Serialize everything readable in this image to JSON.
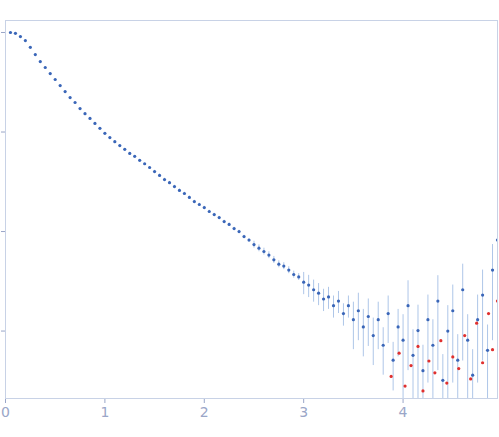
{
  "chart_data": {
    "type": "scatter",
    "log": "y",
    "tick_labels": "x",
    "xlim": [
      0,
      4.95
    ],
    "xticks": [
      0,
      1,
      2,
      3,
      4
    ],
    "ylim": [
      0.00021,
      1.32
    ],
    "yticks": [
      0.001,
      0.01,
      0.1,
      1
    ],
    "series": [
      {
        "color": "#3a66b8",
        "marker": "circle",
        "x": [
          0.05,
          0.1,
          0.15,
          0.2,
          0.25,
          0.3,
          0.35,
          0.4,
          0.45,
          0.5,
          0.55,
          0.6,
          0.65,
          0.7,
          0.75,
          0.8,
          0.85,
          0.9,
          0.95,
          1.0,
          1.05,
          1.1,
          1.15,
          1.2,
          1.25,
          1.3,
          1.35,
          1.4,
          1.45,
          1.5,
          1.55,
          1.6,
          1.65,
          1.7,
          1.75,
          1.8,
          1.85,
          1.9,
          1.95,
          2.0,
          2.05,
          2.1,
          2.15,
          2.2,
          2.25,
          2.3,
          2.35,
          2.4,
          2.45,
          2.5,
          2.55,
          2.6,
          2.65,
          2.7,
          2.75,
          2.8,
          2.85,
          2.9,
          2.95,
          3.0,
          3.05,
          3.1,
          3.15,
          3.2,
          3.25,
          3.3,
          3.35,
          3.4,
          3.45,
          3.5,
          3.55,
          3.6,
          3.65,
          3.7,
          3.75,
          3.8,
          3.85,
          3.9,
          3.95,
          4.0,
          4.05,
          4.1,
          4.15,
          4.2,
          4.25,
          4.3,
          4.35,
          4.4,
          4.45,
          4.5,
          4.55,
          4.6,
          4.65,
          4.7,
          4.75,
          4.8,
          4.85,
          4.9,
          4.95
        ],
        "values": [
          1.0,
          0.98,
          0.91,
          0.83,
          0.71,
          0.6,
          0.51,
          0.445,
          0.387,
          0.337,
          0.293,
          0.255,
          0.222,
          0.198,
          0.172,
          0.153,
          0.137,
          0.122,
          0.109,
          0.097,
          0.088,
          0.08,
          0.073,
          0.067,
          0.061,
          0.057,
          0.052,
          0.048,
          0.044,
          0.04,
          0.0366,
          0.0333,
          0.031,
          0.0283,
          0.0259,
          0.0241,
          0.022,
          0.02,
          0.0187,
          0.0174,
          0.0159,
          0.0148,
          0.0138,
          0.0126,
          0.0118,
          0.0107,
          0.01,
          0.0089,
          0.0082,
          0.0074,
          0.0068,
          0.0063,
          0.0058,
          0.0052,
          0.0047,
          0.0045,
          0.0041,
          0.0037,
          0.0035,
          0.0031,
          0.0029,
          0.0026,
          0.0024,
          0.0021,
          0.0022,
          0.0018,
          0.002,
          0.0015,
          0.0018,
          0.0013,
          0.0016,
          0.0011,
          0.0014,
          0.0009,
          0.0013,
          0.00072,
          0.0015,
          0.00051,
          0.0011,
          0.00081,
          0.0018,
          0.00057,
          0.00101,
          0.0004,
          0.0013,
          0.00072,
          0.002,
          0.00032,
          0.001,
          0.0016,
          0.00051,
          0.0026,
          0.00081,
          0.00036,
          0.0013,
          0.0023,
          0.00064,
          0.0041,
          0.0082
        ],
        "errors": [
          0.01,
          0.0098,
          0.0091,
          0.0083,
          0.0071,
          0.006,
          0.0051,
          0.0045,
          0.0039,
          0.0034,
          0.0029,
          0.0026,
          0.0022,
          0.002,
          0.0017,
          0.0015,
          0.0014,
          0.0012,
          0.0011,
          0.001,
          0.00088,
          0.0008,
          0.00073,
          0.00067,
          0.00061,
          0.00057,
          0.00052,
          0.00048,
          0.00044,
          0.0012,
          0.0011,
          0.001,
          0.00093,
          0.00085,
          0.00078,
          0.00072,
          0.00066,
          0.0006,
          0.00056,
          0.00052,
          0.00048,
          0.00044,
          0.00041,
          0.00038,
          0.00035,
          0.00032,
          0.0003,
          0.00027,
          0.00025,
          0.00059,
          0.00054,
          0.0005,
          0.00046,
          0.00042,
          0.00038,
          0.00036,
          0.00033,
          0.0003,
          0.00028,
          0.00078,
          0.00073,
          0.00065,
          0.0006,
          0.00053,
          0.00055,
          0.00045,
          0.0005,
          0.00038,
          0.00045,
          0.00065,
          0.0008,
          0.00055,
          0.0007,
          0.00045,
          0.00065,
          0.00036,
          0.00075,
          0.00026,
          0.00055,
          0.00065,
          0.0014,
          0.00046,
          0.00081,
          0.00032,
          0.001,
          0.00058,
          0.0016,
          0.00026,
          0.0008,
          0.0013,
          0.00041,
          0.0021,
          0.00065,
          0.00029,
          0.001,
          0.0018,
          0.00051,
          0.0033,
          0.0066
        ]
      },
      {
        "color": "#e0302e",
        "marker": "circle",
        "x": [
          3.88,
          3.96,
          4.02,
          4.08,
          4.15,
          4.2,
          4.26,
          4.32,
          4.38,
          4.44,
          4.5,
          4.56,
          4.62,
          4.68,
          4.74,
          4.8,
          4.86,
          4.9,
          4.95
        ],
        "values": [
          0.00035,
          0.0006,
          0.00028,
          0.00045,
          0.0007,
          0.00025,
          0.0005,
          0.00038,
          0.0008,
          0.0003,
          0.00055,
          0.00042,
          0.0009,
          0.00033,
          0.0012,
          0.00048,
          0.0015,
          0.00065,
          0.002
        ]
      }
    ]
  }
}
